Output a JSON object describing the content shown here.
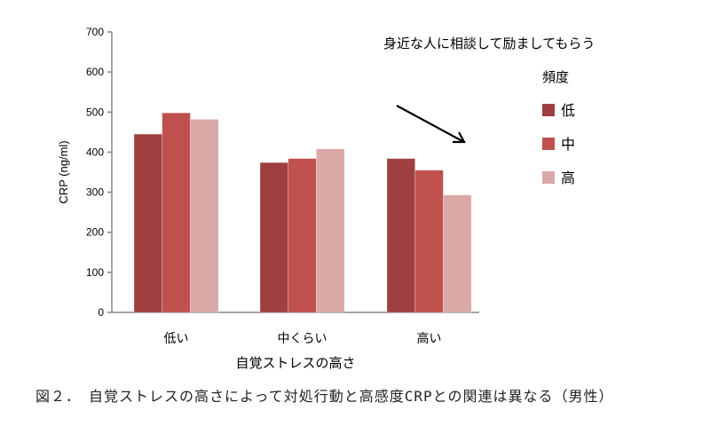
{
  "chart_data": {
    "type": "bar",
    "title": "",
    "annotation": "身近な人に相談して励ましてもらう",
    "legend_title": "頻度",
    "xlabel": "自覚ストレスの高さ",
    "ylabel": "CRP (ng/ml)",
    "ylim": [
      0,
      700
    ],
    "yticks": [
      0,
      100,
      200,
      300,
      400,
      500,
      600,
      700
    ],
    "categories": [
      "低い",
      "中くらい",
      "高い"
    ],
    "series": [
      {
        "name": "低",
        "color": "#9e403f",
        "values": [
          445,
          374,
          384
        ]
      },
      {
        "name": "中",
        "color": "#c0504d",
        "values": [
          498,
          384,
          355
        ]
      },
      {
        "name": "高",
        "color": "#d9a8a7",
        "values": [
          482,
          408,
          293
        ]
      }
    ],
    "grid": false,
    "legend_position": "right",
    "arrow": "downward-trend-arrow"
  },
  "caption": "図２．　自覚ストレスの高さによって対処行動と高感度CRPとの関連は異なる（男性）"
}
